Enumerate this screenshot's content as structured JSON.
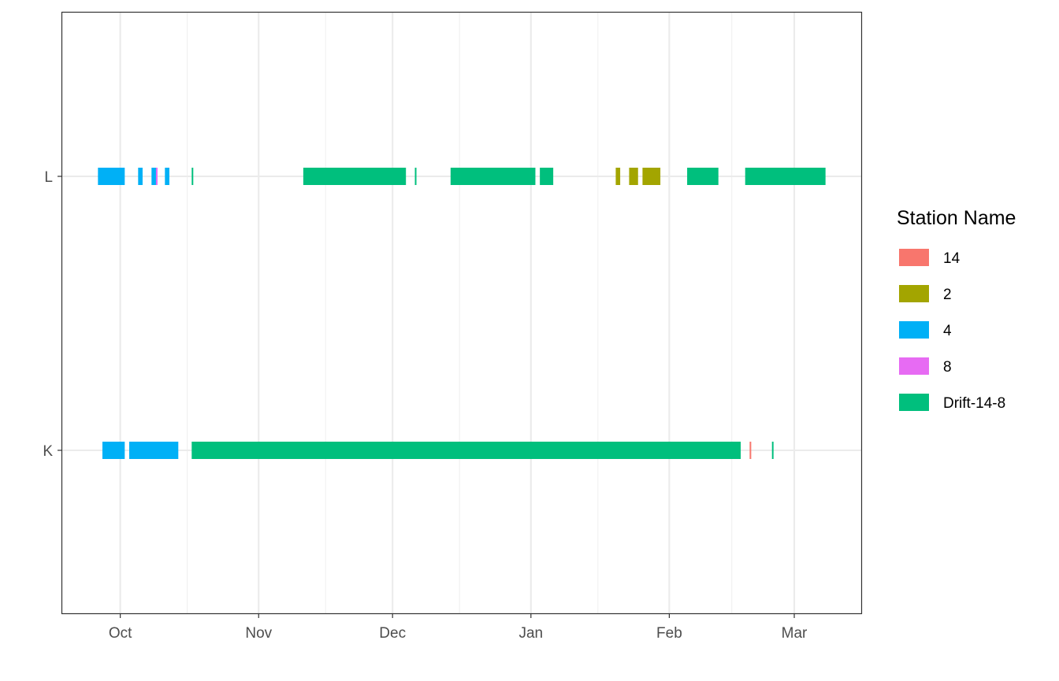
{
  "chart_data": {
    "type": "timeline",
    "title": "",
    "xlabel": "",
    "ylabel": "",
    "x_axis": {
      "range": [
        "2021-09-18",
        "2022-03-16"
      ],
      "ticks": [
        {
          "date": "2021-10-01",
          "label": "Oct"
        },
        {
          "date": "2021-11-01",
          "label": "Nov"
        },
        {
          "date": "2021-12-01",
          "label": "Dec"
        },
        {
          "date": "2022-01-01",
          "label": "Jan"
        },
        {
          "date": "2022-02-01",
          "label": "Feb"
        },
        {
          "date": "2022-03-01",
          "label": "Mar"
        }
      ],
      "minor_ticks": [
        "2021-10-16",
        "2021-11-16",
        "2021-12-16",
        "2022-01-16",
        "2022-02-15"
      ]
    },
    "categories": [
      "K",
      "L"
    ],
    "grid": true,
    "legend": {
      "title": "Station Name",
      "position": "right",
      "entries": [
        {
          "label": "14",
          "color": "#F8766D"
        },
        {
          "label": "2",
          "color": "#A3A500"
        },
        {
          "label": "4",
          "color": "#00B0F6"
        },
        {
          "label": "8",
          "color": "#E76BF3"
        },
        {
          "label": "Drift-14-8",
          "color": "#00BF7D"
        }
      ]
    },
    "segments": [
      {
        "category": "L",
        "station": "4",
        "start": "2021-09-26",
        "end": "2021-10-02"
      },
      {
        "category": "L",
        "station": "4",
        "start": "2021-10-05",
        "end": "2021-10-06"
      },
      {
        "category": "L",
        "station": "4",
        "start": "2021-10-08",
        "end": "2021-10-09"
      },
      {
        "category": "L",
        "station": "8",
        "start": "2021-10-09",
        "end": "2021-10-09"
      },
      {
        "category": "L",
        "station": "4",
        "start": "2021-10-11",
        "end": "2021-10-12"
      },
      {
        "category": "L",
        "station": "Drift-14-8",
        "start": "2021-10-17",
        "end": "2021-10-17"
      },
      {
        "category": "L",
        "station": "Drift-14-8",
        "start": "2021-11-11",
        "end": "2021-12-04"
      },
      {
        "category": "L",
        "station": "Drift-14-8",
        "start": "2021-12-06",
        "end": "2021-12-06"
      },
      {
        "category": "L",
        "station": "Drift-14-8",
        "start": "2021-12-14",
        "end": "2022-01-02"
      },
      {
        "category": "L",
        "station": "Drift-14-8",
        "start": "2022-01-03",
        "end": "2022-01-06"
      },
      {
        "category": "L",
        "station": "2",
        "start": "2022-01-20",
        "end": "2022-01-21"
      },
      {
        "category": "L",
        "station": "2",
        "start": "2022-01-23",
        "end": "2022-01-25"
      },
      {
        "category": "L",
        "station": "2",
        "start": "2022-01-26",
        "end": "2022-01-30"
      },
      {
        "category": "L",
        "station": "Drift-14-8",
        "start": "2022-02-05",
        "end": "2022-02-12"
      },
      {
        "category": "L",
        "station": "Drift-14-8",
        "start": "2022-02-18",
        "end": "2022-03-08"
      },
      {
        "category": "K",
        "station": "4",
        "start": "2021-09-27",
        "end": "2021-10-02"
      },
      {
        "category": "K",
        "station": "4",
        "start": "2021-10-03",
        "end": "2021-10-14"
      },
      {
        "category": "K",
        "station": "Drift-14-8",
        "start": "2021-10-17",
        "end": "2022-02-17"
      },
      {
        "category": "K",
        "station": "14",
        "start": "2022-02-19",
        "end": "2022-02-19"
      },
      {
        "category": "K",
        "station": "Drift-14-8",
        "start": "2022-02-24",
        "end": "2022-02-24"
      }
    ]
  }
}
